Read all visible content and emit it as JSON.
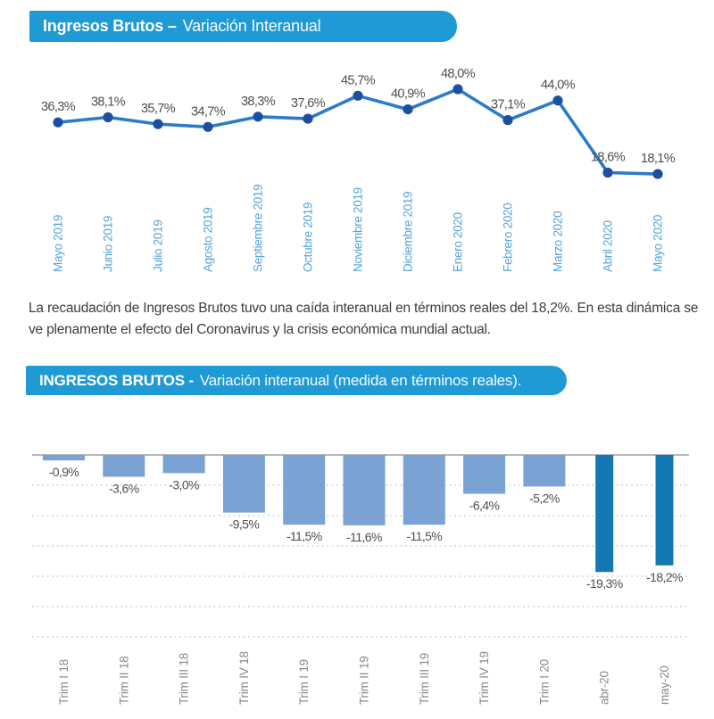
{
  "banner1": {
    "bold": "Ingresos Brutos –",
    "light": "Variación Interanual"
  },
  "banner2": {
    "bold": "INGRESOS BRUTOS -",
    "light": "Variación interanual (medida en términos reales)."
  },
  "paragraph": "La recaudación de Ingresos Brutos tuvo una caída interanual en términos reales del 18,2%. En esta dinámica se ve plenamente el efecto del Coronavirus y la crisis económica mundial actual.",
  "colors": {
    "banner_bg": "#1f9ad4",
    "line": "#2c7bc9",
    "marker": "#1d4fa0",
    "month_label_blue": "#54a4da",
    "value_label_gray": "#4f4f4f",
    "bar_light": "#7aa2d2",
    "bar_dark": "#1478b2",
    "category_label_gray": "#8a8a8a",
    "gridline": "#c9c9c9",
    "zero_line": "#b8b8b8",
    "body_text": "#3d3d3d"
  },
  "chart_data": [
    {
      "type": "line",
      "title": "Ingresos Brutos – Variación Interanual",
      "categories": [
        "Mayo 2019",
        "Junio 2019",
        "Julio 2019",
        "Agosto 2019",
        "Septiembre 2019",
        "Octubre 2019",
        "Noviembre 2019",
        "Diciembre 2019",
        "Enero 2020",
        "Febrero 2020",
        "Marzo 2020",
        "Abril 2020",
        "Mayo 2020"
      ],
      "values": [
        36.3,
        38.1,
        35.7,
        34.7,
        38.3,
        37.6,
        45.7,
        40.9,
        48.0,
        37.1,
        44.0,
        18.6,
        18.1
      ],
      "labels": [
        "36,3%",
        "38,1%",
        "35,7%",
        "34,7%",
        "38,3%",
        "37,6%",
        "45,7%",
        "40,9%",
        "48,0%",
        "37,1%",
        "44,0%",
        "18,6%",
        "18,1%"
      ],
      "ylim": [
        15,
        50
      ],
      "grid": false,
      "legend": false,
      "xlabel": "",
      "ylabel": ""
    },
    {
      "type": "bar",
      "title": "INGRESOS BRUTOS - Variación interanual (medida en términos reales).",
      "categories": [
        "Trim I 18",
        "Trim II 18",
        "Trim III 18",
        "Trim IV 18",
        "Trim I 19",
        "Trim II 19",
        "Trim III 19",
        "Trim IV 19",
        "Trim I 20",
        "abr-20",
        "may-20"
      ],
      "values": [
        -0.9,
        -3.6,
        -3.0,
        -9.5,
        -11.5,
        -11.6,
        -11.5,
        -6.4,
        -5.2,
        -19.3,
        -18.2
      ],
      "labels": [
        "-0,9%",
        "-3,6%",
        "-3,0%",
        "-9,5%",
        "-11,5%",
        "-11,6%",
        "-11,5%",
        "-6,4%",
        "-5,2%",
        "-19,3%",
        "-18,2%"
      ],
      "highlight_indices": [
        9,
        10
      ],
      "ylim": [
        -30,
        0
      ],
      "gridline_step": 5,
      "grid": true,
      "legend": false,
      "xlabel": "",
      "ylabel": ""
    }
  ]
}
